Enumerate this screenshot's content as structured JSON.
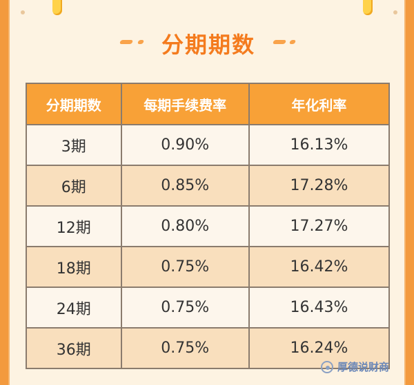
{
  "title": "分期期数",
  "table": {
    "headers": [
      "分期期数",
      "每期手续费率",
      "年化利率"
    ],
    "rows": [
      [
        "3期",
        "0.90%",
        "16.13%"
      ],
      [
        "6期",
        "0.85%",
        "17.28%"
      ],
      [
        "12期",
        "0.80%",
        "17.27%"
      ],
      [
        "18期",
        "0.75%",
        "16.42%"
      ],
      [
        "24期",
        "0.75%",
        "16.43%"
      ],
      [
        "36期",
        "0.75%",
        "16.24%"
      ]
    ]
  },
  "watermark": "厚德说财商",
  "colors": {
    "title": "#f47b1e",
    "header_bg": "#f8a137",
    "row_light": "#fdf6ec",
    "row_dark": "#f9dfbd",
    "border": "#8a7b6d"
  }
}
